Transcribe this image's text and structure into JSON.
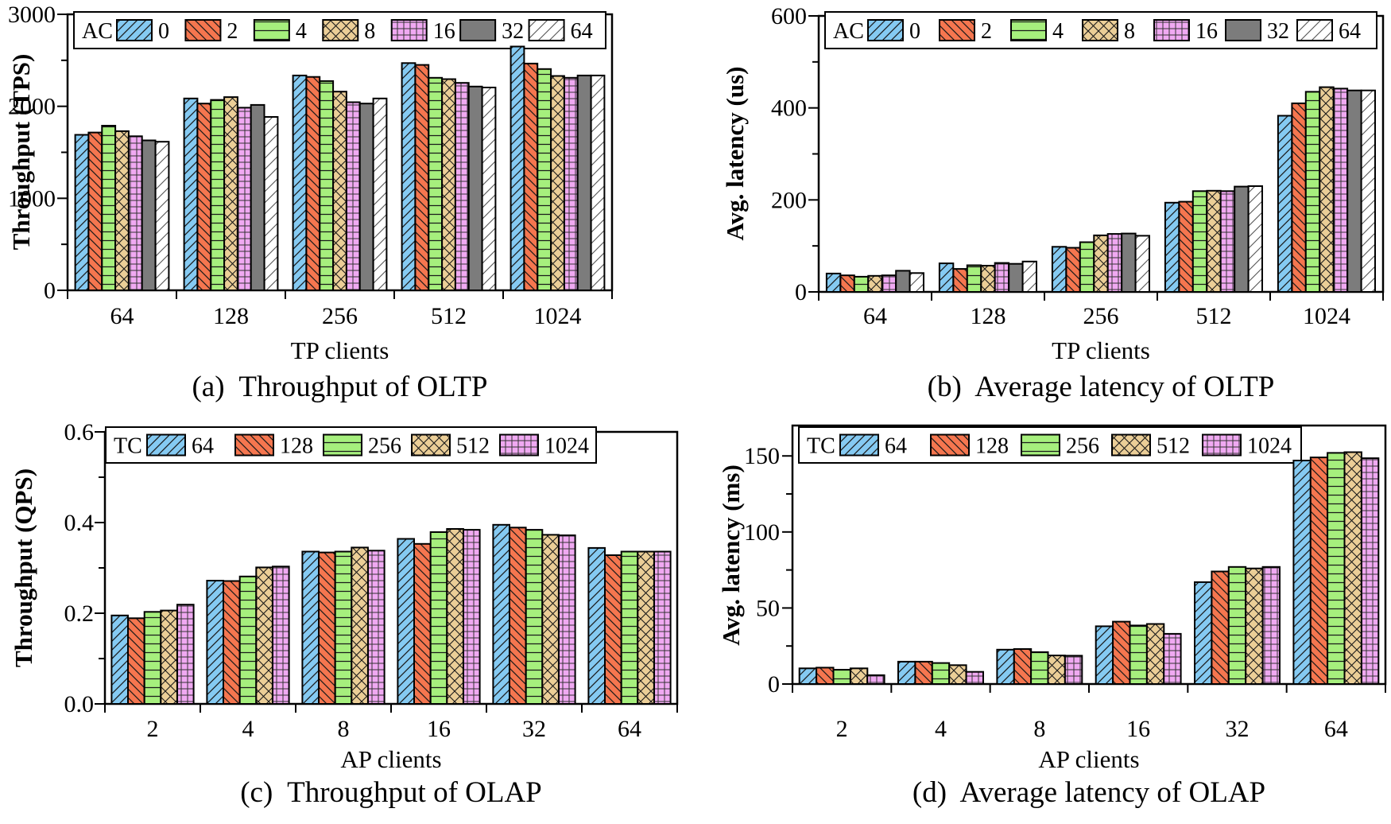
{
  "figure": {
    "background": "#ffffff",
    "series_styles_oltp": [
      {
        "name": "0",
        "fill": "#85CAF2",
        "hatch": "diagonal-forward"
      },
      {
        "name": "2",
        "fill": "#F5764F",
        "hatch": "diagonal-back"
      },
      {
        "name": "4",
        "fill": "#A6EF7D",
        "hatch": "horizontal"
      },
      {
        "name": "8",
        "fill": "#EBCE97",
        "hatch": "cross-diagonal"
      },
      {
        "name": "16",
        "fill": "#F0A9F2",
        "hatch": "grid"
      },
      {
        "name": "32",
        "fill": "#7C7C7C",
        "hatch": "none"
      },
      {
        "name": "64",
        "fill": "#FFFFFF",
        "hatch": "diagonal-sparse"
      }
    ],
    "series_styles_olap": [
      {
        "name": "64",
        "fill": "#85CAF2",
        "hatch": "diagonal-forward"
      },
      {
        "name": "128",
        "fill": "#F5764F",
        "hatch": "diagonal-back"
      },
      {
        "name": "256",
        "fill": "#A6EF7D",
        "hatch": "horizontal"
      },
      {
        "name": "512",
        "fill": "#EBCE97",
        "hatch": "cross-diagonal"
      },
      {
        "name": "1024",
        "fill": "#F0A9F2",
        "hatch": "grid"
      }
    ],
    "edge_color": "#000000"
  },
  "chart_data": [
    {
      "id": "a",
      "type": "bar",
      "title": "(a)  Throughput of OLTP",
      "xlabel": "TP clients",
      "ylabel": "Throughput (TPS)",
      "legend": {
        "title": "AC",
        "position": "top-inside-full-width"
      },
      "categories": [
        "64",
        "128",
        "256",
        "512",
        "1024"
      ],
      "series": [
        {
          "name": "0",
          "values": [
            1690,
            2085,
            2335,
            2470,
            2650
          ]
        },
        {
          "name": "2",
          "values": [
            1715,
            2030,
            2320,
            2450,
            2465
          ]
        },
        {
          "name": "4",
          "values": [
            1790,
            2070,
            2275,
            2310,
            2405
          ]
        },
        {
          "name": "8",
          "values": [
            1730,
            2100,
            2160,
            2295,
            2330
          ]
        },
        {
          "name": "16",
          "values": [
            1675,
            1985,
            2045,
            2255,
            2310
          ]
        },
        {
          "name": "32",
          "values": [
            1630,
            2015,
            2030,
            2215,
            2335
          ]
        },
        {
          "name": "64",
          "values": [
            1615,
            1885,
            2085,
            2205,
            2335
          ]
        }
      ],
      "ylim": [
        0,
        3000
      ],
      "ytick_step": 1000,
      "yminor_step": 500,
      "ytick_decimals": 0,
      "grid": false
    },
    {
      "id": "b",
      "type": "bar",
      "title": "(b)  Average latency of OLTP",
      "xlabel": "TP clients",
      "ylabel": "Avg. latency (us)",
      "legend": {
        "title": "AC",
        "position": "top-inside-full-width"
      },
      "categories": [
        "64",
        "128",
        "256",
        "512",
        "1024"
      ],
      "series": [
        {
          "name": "0",
          "values": [
            40,
            62,
            98,
            194,
            383
          ]
        },
        {
          "name": "2",
          "values": [
            36,
            50,
            96,
            196,
            410
          ]
        },
        {
          "name": "4",
          "values": [
            33,
            58,
            108,
            219,
            435
          ]
        },
        {
          "name": "8",
          "values": [
            35,
            57,
            123,
            220,
            445
          ]
        },
        {
          "name": "16",
          "values": [
            36,
            63,
            126,
            219,
            442
          ]
        },
        {
          "name": "32",
          "values": [
            46,
            61,
            127,
            229,
            438
          ]
        },
        {
          "name": "64",
          "values": [
            41,
            66,
            122,
            230,
            438
          ]
        }
      ],
      "ylim": [
        0,
        600
      ],
      "ytick_step": 200,
      "yminor_step": 100,
      "ytick_decimals": 0,
      "grid": false
    },
    {
      "id": "c",
      "type": "bar",
      "title": "(c)  Throughput of OLAP",
      "xlabel": "AP clients",
      "ylabel": "Throughput (QPS)",
      "legend": {
        "title": "TC",
        "position": "top-inside-left"
      },
      "categories": [
        "2",
        "4",
        "8",
        "16",
        "32",
        "64"
      ],
      "series": [
        {
          "name": "64",
          "values": [
            0.195,
            0.272,
            0.336,
            0.364,
            0.395,
            0.344
          ]
        },
        {
          "name": "128",
          "values": [
            0.189,
            0.271,
            0.334,
            0.353,
            0.389,
            0.328
          ]
        },
        {
          "name": "256",
          "values": [
            0.203,
            0.281,
            0.336,
            0.379,
            0.384,
            0.336
          ]
        },
        {
          "name": "512",
          "values": [
            0.206,
            0.301,
            0.345,
            0.386,
            0.373,
            0.336
          ]
        },
        {
          "name": "1024",
          "values": [
            0.219,
            0.303,
            0.338,
            0.384,
            0.372,
            0.336
          ]
        }
      ],
      "ylim": [
        0,
        0.6
      ],
      "ytick_step": 0.2,
      "yminor_step": 0.1,
      "ytick_decimals": 1,
      "grid": false
    },
    {
      "id": "d",
      "type": "bar",
      "title": "(d)  Average latency of OLAP",
      "xlabel": "AP clients",
      "ylabel": "Avg. latency (ms)",
      "legend": {
        "title": "TC",
        "position": "top-inside-left"
      },
      "categories": [
        "2",
        "4",
        "8",
        "16",
        "32",
        "64"
      ],
      "series": [
        {
          "name": "64",
          "values": [
            10.3,
            14.7,
            22.6,
            38.0,
            67.0,
            147.0
          ]
        },
        {
          "name": "128",
          "values": [
            10.8,
            14.7,
            23.0,
            41.0,
            74.0,
            149.0
          ]
        },
        {
          "name": "256",
          "values": [
            9.4,
            13.8,
            21.0,
            38.5,
            77.0,
            152.0
          ]
        },
        {
          "name": "512",
          "values": [
            10.3,
            12.4,
            18.8,
            39.5,
            76.0,
            152.5
          ]
        },
        {
          "name": "1024",
          "values": [
            5.8,
            8.0,
            18.6,
            33.0,
            77.0,
            148.5
          ]
        }
      ],
      "ylim": [
        0,
        170
      ],
      "ytick_step": 50,
      "yminor_step": 25,
      "ytick_decimals": 0,
      "grid": false
    }
  ]
}
